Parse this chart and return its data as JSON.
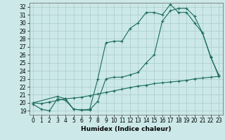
{
  "xlabel": "Humidex (Indice chaleur)",
  "bg_color": "#cce8e8",
  "grid_color": "#aacccc",
  "line_color": "#1a6b5a",
  "xlim": [
    -0.5,
    23.5
  ],
  "ylim": [
    18.5,
    32.5
  ],
  "xticks": [
    0,
    1,
    2,
    3,
    4,
    5,
    6,
    7,
    8,
    9,
    10,
    11,
    12,
    13,
    14,
    15,
    16,
    17,
    18,
    19,
    20,
    21,
    22,
    23
  ],
  "yticks": [
    19,
    20,
    21,
    22,
    23,
    24,
    25,
    26,
    27,
    28,
    29,
    30,
    31,
    32
  ],
  "line1_x": [
    0,
    1,
    2,
    3,
    4,
    5,
    6,
    7,
    8,
    9,
    10,
    11,
    12,
    13,
    14,
    15,
    16,
    17,
    18,
    19,
    20,
    21,
    22,
    23
  ],
  "line1_y": [
    19.8,
    19.2,
    19.0,
    20.5,
    20.3,
    19.2,
    19.1,
    19.2,
    23.0,
    27.5,
    27.7,
    27.7,
    29.3,
    30.0,
    31.3,
    31.3,
    31.0,
    32.3,
    31.3,
    31.3,
    30.0,
    28.7,
    25.7,
    23.5
  ],
  "line2_x": [
    0,
    3,
    4,
    5,
    6,
    7,
    8,
    9,
    10,
    11,
    12,
    13,
    14,
    15,
    16,
    17,
    18,
    19,
    20,
    21,
    22,
    23
  ],
  "line2_y": [
    20.0,
    20.8,
    20.5,
    19.2,
    19.1,
    19.1,
    20.2,
    23.0,
    23.2,
    23.2,
    23.5,
    23.8,
    25.0,
    26.0,
    30.2,
    31.5,
    31.8,
    31.8,
    30.8,
    28.7,
    25.8,
    23.3
  ],
  "line3_x": [
    0,
    1,
    2,
    3,
    4,
    5,
    6,
    7,
    8,
    9,
    10,
    11,
    12,
    13,
    14,
    15,
    16,
    17,
    18,
    19,
    20,
    21,
    22,
    23
  ],
  "line3_y": [
    20.0,
    19.9,
    20.1,
    20.3,
    20.5,
    20.6,
    20.7,
    20.9,
    21.1,
    21.3,
    21.5,
    21.7,
    21.9,
    22.1,
    22.2,
    22.4,
    22.5,
    22.6,
    22.7,
    22.8,
    23.0,
    23.1,
    23.2,
    23.3
  ],
  "tick_fontsize": 5.5,
  "xlabel_fontsize": 6.5,
  "marker_size": 3,
  "line_width": 0.8
}
